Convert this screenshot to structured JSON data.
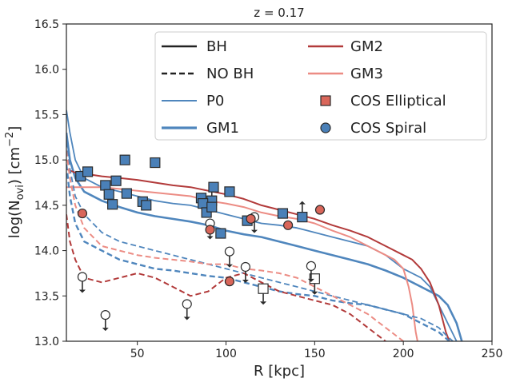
{
  "chart_data": {
    "type": "line",
    "title": "z = 0.17",
    "xlabel": "R [kpc]",
    "ylabel_main": "log(N",
    "ylabel_sub": "ovi",
    "ylabel_unit": ") [cm",
    "ylabel_sup": "−2",
    "ylabel_end": "]",
    "xlim": [
      10,
      250
    ],
    "ylim": [
      13.0,
      16.5
    ],
    "xticks": [
      50,
      100,
      150,
      200,
      250
    ],
    "yticks": [
      13.0,
      13.5,
      14.0,
      14.5,
      15.0,
      15.5,
      16.0,
      16.5
    ],
    "colors": {
      "P0": "#4f86bd",
      "GM1": "#4f86bd",
      "GM2": "#b23a3a",
      "GM3": "#ec8c84",
      "elliptical": "#d9665a",
      "spiral": "#4a80b8",
      "marker_edge": "#2b2b2b"
    },
    "legend": [
      {
        "label": "BH",
        "kind": "line-solid",
        "color": "#222222"
      },
      {
        "label": "NO BH",
        "kind": "line-dashed",
        "color": "#222222"
      },
      {
        "label": "P0",
        "kind": "line-solid-thin",
        "color": "#4f86bd"
      },
      {
        "label": "GM1",
        "kind": "line-solid-thick",
        "color": "#4f86bd"
      },
      {
        "label": "GM2",
        "kind": "line-solid",
        "color": "#b23a3a"
      },
      {
        "label": "GM3",
        "kind": "line-solid",
        "color": "#ec8c84"
      },
      {
        "label": "COS Elliptical",
        "kind": "square",
        "color": "#d9665a"
      },
      {
        "label": "COS Spiral",
        "kind": "circle",
        "color": "#4a80b8"
      }
    ],
    "series": [
      {
        "name": "P0 BH",
        "color": "#4f86bd",
        "dash": false,
        "width": 1.8,
        "x": [
          10,
          12,
          15,
          20,
          30,
          40,
          50,
          60,
          70,
          80,
          90,
          100,
          110,
          120,
          130,
          140,
          150,
          160,
          170,
          180,
          190,
          200,
          210,
          215,
          220,
          225,
          230
        ],
        "y": [
          15.55,
          15.3,
          15.0,
          14.8,
          14.7,
          14.65,
          14.6,
          14.55,
          14.52,
          14.5,
          14.45,
          14.4,
          14.35,
          14.3,
          14.28,
          14.25,
          14.2,
          14.15,
          14.1,
          14.05,
          13.95,
          13.8,
          13.7,
          13.6,
          13.4,
          13.2,
          13.0
        ]
      },
      {
        "name": "GM1 BH",
        "color": "#4f86bd",
        "dash": false,
        "width": 2.6,
        "x": [
          10,
          12,
          15,
          20,
          30,
          40,
          50,
          60,
          70,
          80,
          90,
          100,
          110,
          120,
          130,
          140,
          150,
          160,
          170,
          180,
          190,
          200,
          210,
          220,
          225,
          230,
          233
        ],
        "y": [
          15.3,
          15.0,
          14.8,
          14.65,
          14.55,
          14.48,
          14.42,
          14.38,
          14.35,
          14.32,
          14.28,
          14.22,
          14.18,
          14.15,
          14.1,
          14.05,
          14.0,
          13.95,
          13.9,
          13.85,
          13.78,
          13.7,
          13.6,
          13.5,
          13.4,
          13.2,
          13.0
        ]
      },
      {
        "name": "GM2 BH",
        "color": "#b23a3a",
        "dash": false,
        "width": 2.0,
        "x": [
          10,
          15,
          20,
          30,
          40,
          50,
          60,
          70,
          80,
          90,
          100,
          110,
          120,
          130,
          140,
          150,
          160,
          170,
          180,
          190,
          200,
          205,
          210,
          215,
          220,
          224,
          226
        ],
        "y": [
          14.9,
          14.86,
          14.85,
          14.82,
          14.8,
          14.78,
          14.75,
          14.72,
          14.7,
          14.66,
          14.62,
          14.57,
          14.5,
          14.45,
          14.4,
          14.35,
          14.28,
          14.22,
          14.15,
          14.05,
          13.95,
          13.9,
          13.8,
          13.65,
          13.4,
          13.1,
          13.0
        ]
      },
      {
        "name": "GM3 BH",
        "color": "#ec8c84",
        "dash": false,
        "width": 2.0,
        "x": [
          10,
          20,
          30,
          40,
          50,
          60,
          70,
          80,
          90,
          100,
          110,
          120,
          130,
          140,
          150,
          160,
          170,
          180,
          190,
          195,
          200,
          203,
          205,
          207,
          208
        ],
        "y": [
          14.7,
          14.7,
          14.7,
          14.68,
          14.66,
          14.64,
          14.62,
          14.6,
          14.55,
          14.52,
          14.48,
          14.42,
          14.38,
          14.35,
          14.3,
          14.22,
          14.15,
          14.05,
          13.95,
          13.9,
          13.8,
          13.6,
          13.4,
          13.1,
          13.0
        ]
      },
      {
        "name": "P0 NO BH",
        "color": "#4f86bd",
        "dash": true,
        "width": 1.8,
        "x": [
          10,
          12,
          15,
          20,
          30,
          40,
          50,
          60,
          70,
          80,
          90,
          100,
          110,
          120,
          130,
          140,
          150,
          160,
          170,
          180,
          190,
          200,
          210,
          220,
          225,
          228
        ],
        "y": [
          15.2,
          14.9,
          14.6,
          14.4,
          14.2,
          14.1,
          14.05,
          14.0,
          13.95,
          13.9,
          13.85,
          13.8,
          13.75,
          13.7,
          13.65,
          13.6,
          13.55,
          13.5,
          13.45,
          13.4,
          13.35,
          13.3,
          13.25,
          13.15,
          13.05,
          13.0
        ]
      },
      {
        "name": "GM1 NO BH",
        "color": "#4f86bd",
        "dash": true,
        "width": 2.4,
        "x": [
          10,
          12,
          15,
          20,
          30,
          40,
          50,
          60,
          70,
          80,
          90,
          100,
          110,
          120,
          130,
          140,
          150,
          160,
          170,
          180,
          190,
          200,
          210,
          220,
          226
        ],
        "y": [
          14.95,
          14.6,
          14.3,
          14.1,
          14.0,
          13.9,
          13.85,
          13.8,
          13.78,
          13.75,
          13.72,
          13.7,
          13.65,
          13.6,
          13.55,
          13.52,
          13.5,
          13.45,
          13.42,
          13.4,
          13.35,
          13.3,
          13.2,
          13.1,
          13.0
        ]
      },
      {
        "name": "GM2 NO BH",
        "color": "#b23a3a",
        "dash": true,
        "width": 2.0,
        "x": [
          10,
          12,
          15,
          20,
          30,
          40,
          50,
          60,
          70,
          80,
          90,
          100,
          110,
          120,
          130,
          140,
          150,
          160,
          170,
          180,
          190
        ],
        "y": [
          14.4,
          14.1,
          13.9,
          13.7,
          13.65,
          13.7,
          13.75,
          13.7,
          13.6,
          13.5,
          13.55,
          13.7,
          13.75,
          13.65,
          13.55,
          13.5,
          13.45,
          13.4,
          13.3,
          13.15,
          13.0
        ]
      },
      {
        "name": "GM3 NO BH",
        "color": "#ec8c84",
        "dash": true,
        "width": 2.0,
        "x": [
          10,
          12,
          15,
          20,
          30,
          40,
          50,
          60,
          70,
          80,
          90,
          100,
          110,
          120,
          130,
          140,
          150,
          160,
          170,
          180,
          190,
          200
        ],
        "y": [
          15.1,
          14.8,
          14.5,
          14.25,
          14.05,
          14.0,
          13.95,
          13.92,
          13.9,
          13.88,
          13.85,
          13.85,
          13.8,
          13.78,
          13.75,
          13.7,
          13.6,
          13.5,
          13.4,
          13.3,
          13.15,
          13.0
        ]
      }
    ],
    "cos_spiral": {
      "detections": [
        {
          "x": 18,
          "y": 14.82
        },
        {
          "x": 22,
          "y": 14.87
        },
        {
          "x": 32,
          "y": 14.72
        },
        {
          "x": 34,
          "y": 14.62
        },
        {
          "x": 36,
          "y": 14.51
        },
        {
          "x": 38,
          "y": 14.77
        },
        {
          "x": 43,
          "y": 15.0
        },
        {
          "x": 44,
          "y": 14.63
        },
        {
          "x": 53,
          "y": 14.54
        },
        {
          "x": 55,
          "y": 14.5
        },
        {
          "x": 60,
          "y": 14.97
        },
        {
          "x": 86,
          "y": 14.58
        },
        {
          "x": 87,
          "y": 14.52
        },
        {
          "x": 89,
          "y": 14.42
        },
        {
          "x": 92,
          "y": 14.48
        },
        {
          "x": 93,
          "y": 14.7
        },
        {
          "x": 97,
          "y": 14.19
        },
        {
          "x": 102,
          "y": 14.65
        },
        {
          "x": 112,
          "y": 14.33
        },
        {
          "x": 132,
          "y": 14.41
        }
      ],
      "lower_limits": [
        {
          "x": 92,
          "y": 14.55
        },
        {
          "x": 143,
          "y": 14.37
        }
      ],
      "upper_limits": [
        {
          "x": 121,
          "y": 13.58
        },
        {
          "x": 150,
          "y": 13.69
        }
      ]
    },
    "cos_elliptical": {
      "detections": [
        {
          "x": 19,
          "y": 14.41
        },
        {
          "x": 91,
          "y": 14.23
        },
        {
          "x": 102,
          "y": 13.66
        },
        {
          "x": 114,
          "y": 14.35
        },
        {
          "x": 135,
          "y": 14.28
        },
        {
          "x": 153,
          "y": 14.45
        }
      ],
      "upper_limits": [
        {
          "x": 19,
          "y": 13.71
        },
        {
          "x": 32,
          "y": 13.29
        },
        {
          "x": 78,
          "y": 13.41
        },
        {
          "x": 91,
          "y": 14.3
        },
        {
          "x": 102,
          "y": 13.99
        },
        {
          "x": 111,
          "y": 13.82
        },
        {
          "x": 116,
          "y": 14.37
        },
        {
          "x": 148,
          "y": 13.83
        }
      ]
    }
  }
}
